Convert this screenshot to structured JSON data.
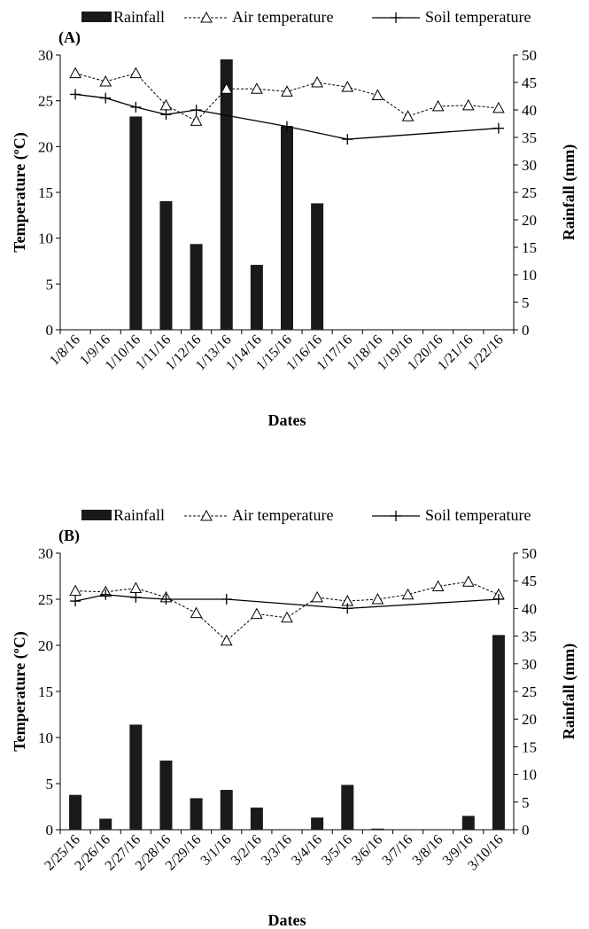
{
  "chart_data": [
    {
      "type": "bar+line",
      "panel_label": "(A)",
      "xlabel": "Dates",
      "ylabel_left": "Temperature (ºC)",
      "ylabel_right": "Rainfall (mm)",
      "ylim_left": [
        0,
        30
      ],
      "ylim_right": [
        0,
        50
      ],
      "yticks_left": [
        "0",
        "5",
        "10",
        "15",
        "20",
        "25",
        "30"
      ],
      "yticks_right": [
        "0",
        "5",
        "10",
        "15",
        "20",
        "25",
        "30",
        "35",
        "40",
        "45",
        "50"
      ],
      "legend_position": "top",
      "grid": false,
      "categories": [
        "1/8/16",
        "1/9/16",
        "1/10/16",
        "1/11/16",
        "1/12/16",
        "1/13/16",
        "1/14/16",
        "1/15/16",
        "1/16/16",
        "1/17/16",
        "1/18/16",
        "1/19/16",
        "1/20/16",
        "1/21/16",
        "1/22/16"
      ],
      "series": [
        {
          "name": "Rainfall",
          "kind": "bar",
          "axis": "right",
          "color": "#1a1a1a",
          "values": [
            0,
            0,
            38.8,
            23.4,
            15.6,
            49.2,
            11.8,
            37.0,
            23.0,
            0,
            0,
            0,
            0,
            0,
            0
          ]
        },
        {
          "name": "Air temperature",
          "kind": "line",
          "style": "dashed",
          "marker": "triangle",
          "axis": "left",
          "color": "#000000",
          "values": [
            28.0,
            27.1,
            28.0,
            24.5,
            22.8,
            26.3,
            26.3,
            26.0,
            27.0,
            26.5,
            25.6,
            23.3,
            24.4,
            24.5,
            24.2
          ]
        },
        {
          "name": "Soil temperature",
          "kind": "line",
          "style": "solid",
          "marker": "plus",
          "axis": "left",
          "color": "#000000",
          "points": [
            [
              0,
              25.7
            ],
            [
              1,
              25.3
            ],
            [
              2,
              24.3
            ],
            [
              3,
              23.5
            ],
            [
              4,
              24.0
            ],
            [
              7,
              22.2
            ],
            [
              9,
              20.8
            ],
            [
              14,
              22.0
            ]
          ]
        }
      ]
    },
    {
      "type": "bar+line",
      "panel_label": "(B)",
      "xlabel": "Dates",
      "ylabel_left": "Temperature (ºC)",
      "ylabel_right": "Rainfall (mm)",
      "ylim_left": [
        0,
        30
      ],
      "ylim_right": [
        0,
        50
      ],
      "yticks_left": [
        "0",
        "5",
        "10",
        "15",
        "20",
        "25",
        "30"
      ],
      "yticks_right": [
        "0",
        "5",
        "10",
        "15",
        "20",
        "25",
        "30",
        "35",
        "40",
        "45",
        "50"
      ],
      "legend_position": "top",
      "grid": false,
      "categories": [
        "2/25/16",
        "2/26/16",
        "2/27/16",
        "2/28/16",
        "2/29/16",
        "3/1/16",
        "3/2/16",
        "3/3/16",
        "3/4/16",
        "3/5/16",
        "3/6/16",
        "3/7/16",
        "3/8/16",
        "3/9/16",
        "3/10/16"
      ],
      "series": [
        {
          "name": "Rainfall",
          "kind": "bar",
          "axis": "right",
          "color": "#1a1a1a",
          "values": [
            6.3,
            2.0,
            19.0,
            12.5,
            5.7,
            7.2,
            4.0,
            0,
            2.2,
            8.1,
            0.2,
            0,
            0,
            2.5,
            35.2
          ]
        },
        {
          "name": "Air temperature",
          "kind": "line",
          "style": "dashed",
          "marker": "triangle",
          "axis": "left",
          "color": "#000000",
          "values": [
            25.9,
            25.8,
            26.2,
            25.2,
            23.5,
            20.5,
            23.4,
            23.0,
            25.2,
            24.8,
            25.0,
            25.5,
            26.4,
            26.9,
            25.5
          ]
        },
        {
          "name": "Soil temperature",
          "kind": "line",
          "style": "solid",
          "marker": "plus",
          "axis": "left",
          "color": "#000000",
          "points": [
            [
              0,
              24.8
            ],
            [
              1,
              25.5
            ],
            [
              2,
              25.2
            ],
            [
              3,
              25.0
            ],
            [
              5,
              25.0
            ],
            [
              9,
              24.0
            ],
            [
              14,
              25.0
            ]
          ]
        }
      ]
    }
  ]
}
